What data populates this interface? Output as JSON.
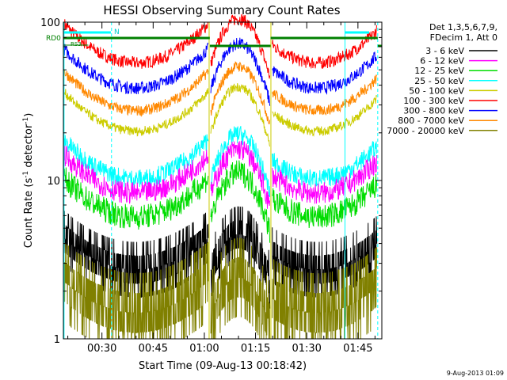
{
  "chart_data": {
    "type": "line",
    "title": "HESSI Observing Summary Count Rates",
    "xlabel": "Start Time (09-Aug-13 00:18:42)",
    "ylabel_main": "Count Rate (s",
    "ylabel_sup": "-1",
    "ylabel_tail": " detector",
    "ylabel_end": ")",
    "y_scale": "log",
    "ylim": [
      1,
      100
    ],
    "xlim": [
      "00:18:42",
      "01:52:00"
    ],
    "x_tick_labels": [
      "00:30",
      "00:45",
      "01:00",
      "01:15",
      "01:30",
      "01:45"
    ],
    "y_tick_labels": [
      "1",
      "10",
      "100"
    ],
    "legend_header": [
      "Det 1,3,5,6,7,9,",
      "FDecim 1, Att 0"
    ],
    "legend_placement": "right",
    "series": [
      {
        "name": "3 - 6 keV",
        "color": "#000000"
      },
      {
        "name": "6 - 12 keV",
        "color": "#ff00ff"
      },
      {
        "name": "12 - 25 keV",
        "color": "#00dd00"
      },
      {
        "name": "25 - 50 keV",
        "color": "#00ffff"
      },
      {
        "name": "50 - 100 keV",
        "color": "#cccc00"
      },
      {
        "name": "100 - 300 keV",
        "color": "#ff0000"
      },
      {
        "name": "300 - 800 keV",
        "color": "#0000ff"
      },
      {
        "name": "800 - 7000 keV",
        "color": "#ff8800"
      },
      {
        "name": "7000 - 20000 keV",
        "color": "#808000"
      }
    ],
    "flags": [
      {
        "label": "N",
        "color": "#00ffff"
      },
      {
        "label": "RD0",
        "color": "#008000"
      },
      {
        "label": "RS3",
        "color": "#008000"
      }
    ]
  },
  "footer": {
    "timestamp": "9-Aug-2013 01:09"
  }
}
